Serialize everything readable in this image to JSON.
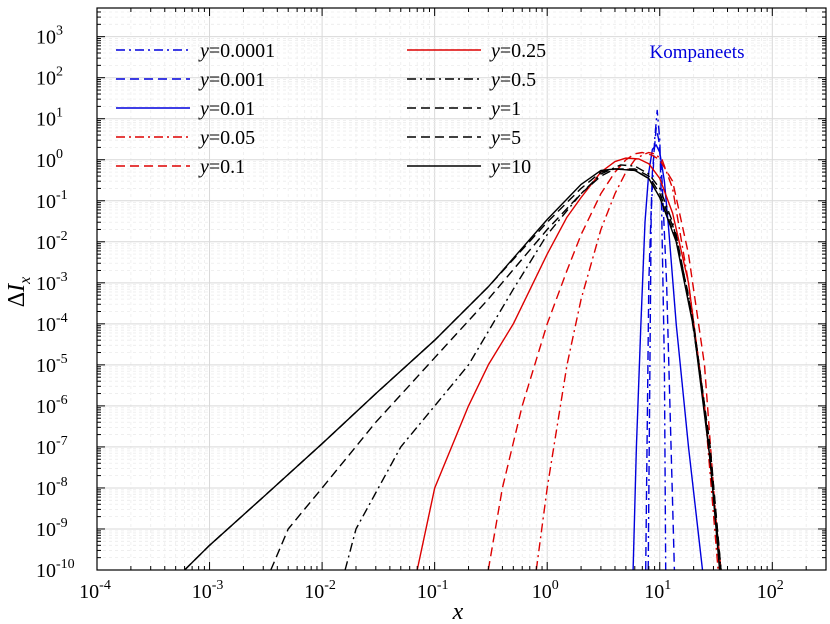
{
  "chart_data": {
    "type": "line",
    "title": "",
    "annotation": "Kompaneets",
    "annotation_color": "#0000dd",
    "xlabel": "x",
    "ylabel_delta": "Δ",
    "ylabel_var": "I",
    "ylabel_sub": "x",
    "xscale": "log",
    "yscale": "log",
    "xlim": [
      0.0001,
      300
    ],
    "ylim": [
      1e-10,
      5000
    ],
    "grid": true,
    "legend_placement": "top, two columns",
    "x_ticks": [
      {
        "value": 0.0001,
        "base": "10",
        "exp": "-4"
      },
      {
        "value": 0.001,
        "base": "10",
        "exp": "-3"
      },
      {
        "value": 0.01,
        "base": "10",
        "exp": "-2"
      },
      {
        "value": 0.1,
        "base": "10",
        "exp": "-1"
      },
      {
        "value": 1,
        "base": "10",
        "exp": "0"
      },
      {
        "value": 10,
        "base": "10",
        "exp": "1"
      },
      {
        "value": 100,
        "base": "10",
        "exp": "2"
      }
    ],
    "y_ticks": [
      {
        "value": 1e-10,
        "base": "10",
        "exp": "-10"
      },
      {
        "value": 1e-09,
        "base": "10",
        "exp": "-9"
      },
      {
        "value": 1e-08,
        "base": "10",
        "exp": "-8"
      },
      {
        "value": 1e-07,
        "base": "10",
        "exp": "-7"
      },
      {
        "value": 1e-06,
        "base": "10",
        "exp": "-6"
      },
      {
        "value": 1e-05,
        "base": "10",
        "exp": "-5"
      },
      {
        "value": 0.0001,
        "base": "10",
        "exp": "-4"
      },
      {
        "value": 0.001,
        "base": "10",
        "exp": "-3"
      },
      {
        "value": 0.01,
        "base": "10",
        "exp": "-2"
      },
      {
        "value": 0.1,
        "base": "10",
        "exp": "-1"
      },
      {
        "value": 1,
        "base": "10",
        "exp": "0"
      },
      {
        "value": 10,
        "base": "10",
        "exp": "1"
      },
      {
        "value": 100,
        "base": "10",
        "exp": "2"
      },
      {
        "value": 1000,
        "base": "10",
        "exp": "3"
      }
    ],
    "series": [
      {
        "prefix": "y",
        "value_text": "=0.0001",
        "color": "#0000dd",
        "dash": "dashdot",
        "x": [
          7.9,
          8.4,
          9.0,
          9.5,
          10.0,
          10.4,
          11.0,
          11.3
        ],
        "y": [
          1e-10,
          0.05,
          3,
          16,
          3,
          0.05,
          1e-05,
          1e-10
        ]
      },
      {
        "prefix": "y",
        "value_text": "=0.001",
        "color": "#0000dd",
        "dash": "dashed",
        "x": [
          7.5,
          8.0,
          8.6,
          9.3,
          9.8,
          10.5,
          11.5,
          13.5
        ],
        "y": [
          1e-10,
          0.001,
          0.5,
          6,
          3,
          0.3,
          0.001,
          1e-10
        ]
      },
      {
        "prefix": "y",
        "value_text": "=0.01",
        "color": "#0000dd",
        "dash": "solid",
        "x": [
          5.8,
          6.2,
          6.8,
          7.4,
          8.0,
          8.6,
          9.3,
          10.0,
          11.0,
          12.0,
          14.0,
          18.0,
          24.0
        ],
        "y": [
          1e-10,
          1e-07,
          0.0001,
          0.03,
          0.5,
          1.8,
          2.3,
          1.5,
          0.3,
          0.02,
          0.0001,
          1e-07,
          1e-10
        ]
      },
      {
        "prefix": "y",
        "value_text": "=0.05",
        "color": "#dd0000",
        "dash": "dashdot",
        "x": [
          0.8,
          1.0,
          1.5,
          2.0,
          3.0,
          4.0,
          5.0,
          6.0,
          7.0,
          8.0,
          9.0,
          10.5,
          13.0,
          18.0,
          25.0,
          33.0
        ],
        "y": [
          1e-10,
          1e-08,
          1e-05,
          0.0004,
          0.02,
          0.15,
          0.5,
          1.0,
          1.3,
          1.5,
          1.4,
          1.0,
          0.2,
          0.001,
          1e-06,
          1e-10
        ]
      },
      {
        "prefix": "y",
        "value_text": "=0.1",
        "color": "#dd0000",
        "dash": "dashed",
        "x": [
          0.3,
          0.4,
          0.6,
          1.0,
          1.5,
          2.0,
          3.0,
          4.0,
          5.0,
          6.0,
          7.0,
          8.5,
          10.0,
          13.0,
          18.0,
          25.0,
          34.0
        ],
        "y": [
          1e-10,
          1e-08,
          1e-06,
          0.0001,
          0.002,
          0.015,
          0.15,
          0.5,
          1.0,
          1.4,
          1.5,
          1.3,
          1.0,
          0.3,
          0.005,
          1e-05,
          1e-10
        ]
      },
      {
        "prefix": "y",
        "value_text": "=0.25",
        "color": "#dd0000",
        "dash": "solid",
        "x": [
          0.07,
          0.1,
          0.2,
          0.3,
          0.5,
          1.0,
          1.5,
          2.0,
          3.0,
          4.0,
          5.0,
          6.5,
          8.0,
          10.0,
          13.0,
          18.0,
          25.0,
          35.0
        ],
        "y": [
          1e-10,
          1e-08,
          1e-06,
          1e-05,
          0.0001,
          0.005,
          0.04,
          0.12,
          0.5,
          0.9,
          1.1,
          1.05,
          0.8,
          0.35,
          0.05,
          0.001,
          1e-06,
          1e-10
        ]
      },
      {
        "prefix": "y",
        "value_text": "=0.5",
        "color": "#000000",
        "dash": "dashdot",
        "x": [
          0.016,
          0.02,
          0.05,
          0.1,
          0.2,
          0.5,
          1.0,
          2.0,
          3.0,
          4.5,
          6.0,
          8.0,
          10.0,
          13.0,
          18.0,
          25.0,
          35.0
        ],
        "y": [
          1e-10,
          1e-09,
          1e-07,
          1e-06,
          1e-05,
          0.0007,
          0.015,
          0.15,
          0.45,
          0.75,
          0.7,
          0.45,
          0.2,
          0.03,
          0.0005,
          1e-06,
          1e-10
        ]
      },
      {
        "prefix": "y",
        "value_text": "=1",
        "color": "#000000",
        "dash": "dashed",
        "x": [
          0.0035,
          0.005,
          0.01,
          0.03,
          0.1,
          0.3,
          1.0,
          2.0,
          3.0,
          4.0,
          6.0,
          8.0,
          10.0,
          14.0,
          20.0,
          28.0,
          35.0
        ],
        "y": [
          1e-10,
          1e-09,
          1e-08,
          4e-07,
          1.5e-05,
          0.0004,
          0.02,
          0.15,
          0.4,
          0.6,
          0.6,
          0.4,
          0.15,
          0.015,
          0.0001,
          1e-07,
          1e-10
        ]
      },
      {
        "prefix": "y",
        "value_text": "=5",
        "color": "#000000",
        "dash": "dashed",
        "x": [
          0.0006,
          0.001,
          0.003,
          0.01,
          0.03,
          0.1,
          0.3,
          1.0,
          2.0,
          3.0,
          4.0,
          6.0,
          8.0,
          10.0,
          14.0,
          20.0,
          28.0,
          35.0
        ],
        "y": [
          1e-10,
          4e-10,
          6e-09,
          1.2e-07,
          2e-06,
          4e-05,
          0.0008,
          0.03,
          0.2,
          0.5,
          0.6,
          0.55,
          0.35,
          0.12,
          0.012,
          0.0001,
          1e-07,
          1e-10
        ]
      },
      {
        "prefix": "y",
        "value_text": "=10",
        "color": "#000000",
        "dash": "solid",
        "x": [
          0.0006,
          0.001,
          0.003,
          0.01,
          0.03,
          0.1,
          0.3,
          1.0,
          2.0,
          3.0,
          4.0,
          6.0,
          8.0,
          10.0,
          14.0,
          20.0,
          28.0,
          34.0
        ],
        "y": [
          1e-10,
          4e-10,
          6e-09,
          1.2e-07,
          2e-06,
          4e-05,
          0.0008,
          0.035,
          0.25,
          0.55,
          0.6,
          0.55,
          0.35,
          0.12,
          0.01,
          8e-05,
          5e-08,
          1e-10
        ]
      }
    ]
  }
}
